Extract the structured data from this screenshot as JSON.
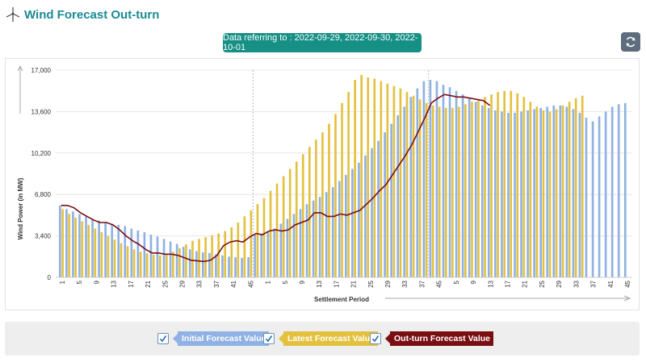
{
  "header": {
    "title": "Wind Forecast Out-turn",
    "icon": "wind-turbine-icon"
  },
  "date_badge": "Data referring to : 2022-09-29, 2022-09-30, 2022-10-01",
  "refresh_icon": "refresh-icon",
  "legend": [
    {
      "label": "Initial Forecast Value",
      "color": "#8fb1e3",
      "checked": true
    },
    {
      "label": "Latest Forecast Value",
      "color": "#e3c13f",
      "checked": true
    },
    {
      "label": "Out-turn Forecast Value",
      "color": "#7a0f12",
      "checked": true
    }
  ],
  "colors": {
    "initial": "#8fb1e3",
    "latest": "#e3c13f",
    "outturn": "#7a0f12",
    "accent": "#168f85"
  },
  "chart_data": {
    "type": "bar",
    "xlabel": "Settlement Period",
    "ylabel": "Wind Power (in MW)",
    "ylim": [
      0,
      17000
    ],
    "yticks": [
      0,
      3400,
      6800,
      10200,
      13600,
      17000
    ],
    "ytick_labels": [
      "0",
      "3,400",
      "6,800",
      "10,200",
      "13,600",
      "17,000"
    ],
    "grid": true,
    "x_labels": [
      "1",
      "5",
      "9",
      "13",
      "17",
      "21",
      "25",
      "29",
      "33",
      "37",
      "41",
      "45",
      "1",
      "5",
      "9",
      "13",
      "17",
      "21",
      "25",
      "29",
      "33",
      "37",
      "45",
      "5",
      "9",
      "13",
      "17",
      "21",
      "25",
      "29",
      "33",
      "37",
      "41",
      "45"
    ],
    "day_separators": [
      2022,
      2030
    ],
    "series": [
      {
        "name": "Initial Forecast Value",
        "values": [
          5900,
          5600,
          5400,
          5200,
          5000,
          4800,
          4650,
          4550,
          4400,
          4300,
          4200,
          4000,
          3850,
          3700,
          3500,
          3350,
          3150,
          2950,
          2750,
          2500,
          2300,
          2150,
          2050,
          2000,
          1900,
          1800,
          1700,
          1650,
          1600,
          1650,
          3500,
          3600,
          3700,
          4000,
          4400,
          4800,
          5200,
          5600,
          6000,
          6300,
          6600,
          7000,
          7400,
          7900,
          8400,
          8900,
          9400,
          10000,
          10600,
          11200,
          11900,
          12600,
          13300,
          14000,
          14800,
          15500,
          16100,
          16200,
          16100,
          15800,
          15600,
          15300,
          15000,
          14700,
          14400,
          14100,
          13900,
          13700,
          13600,
          13500,
          13500,
          13600,
          13700,
          13800,
          13900,
          14000,
          14100,
          14100,
          14000,
          13800,
          13500,
          13100,
          12800,
          13200,
          13600,
          14000,
          14200,
          14300
        ],
        "days": "3 days, 48 settlement periods each; values shown as one bar per period"
      },
      {
        "name": "Latest Forecast Value",
        "values": [
          5600,
          5200,
          4900,
          4600,
          4300,
          4000,
          3700,
          3400,
          3100,
          2800,
          2550,
          2300,
          2100,
          1950,
          1850,
          1800,
          1900,
          2100,
          2400,
          2700,
          3000,
          3150,
          3300,
          3450,
          3600,
          3800,
          4100,
          4500,
          5000,
          5500,
          6000,
          6500,
          7100,
          7700,
          8300,
          8900,
          9500,
          10100,
          10700,
          11300,
          11900,
          12600,
          13400,
          14300,
          15200,
          16200,
          16600,
          16400,
          16300,
          16100,
          15900,
          15700,
          15500,
          15200,
          14900,
          14600,
          14300,
          14100,
          14000,
          13900,
          13900,
          14000,
          14200,
          14400,
          14600,
          14800,
          15000,
          15200,
          15300,
          15300,
          15100,
          14800,
          14400,
          14000,
          13700,
          13600,
          13800,
          14100,
          14400,
          14700,
          14900
        ],
        "days": "latest forecast per period"
      },
      {
        "name": "Out-turn Forecast Value",
        "values": [
          5900,
          5900,
          5700,
          5300,
          5000,
          4700,
          4500,
          4500,
          4300,
          3900,
          3400,
          3000,
          2700,
          2300,
          2000,
          2000,
          1900,
          1900,
          1800,
          1600,
          1400,
          1350,
          1300,
          1400,
          1800,
          2600,
          2900,
          3000,
          2900,
          3300,
          3600,
          3500,
          3800,
          3900,
          3800,
          3900,
          4300,
          4500,
          4700,
          5300,
          5300,
          5000,
          5000,
          5200,
          5100,
          5300,
          5500,
          6000,
          6500,
          7100,
          7600,
          8400,
          9200,
          10000,
          10900,
          12000,
          13100,
          14300,
          14700,
          15000,
          14900,
          14800,
          14800,
          14700,
          14600,
          14500,
          14100
        ]
      }
    ]
  }
}
